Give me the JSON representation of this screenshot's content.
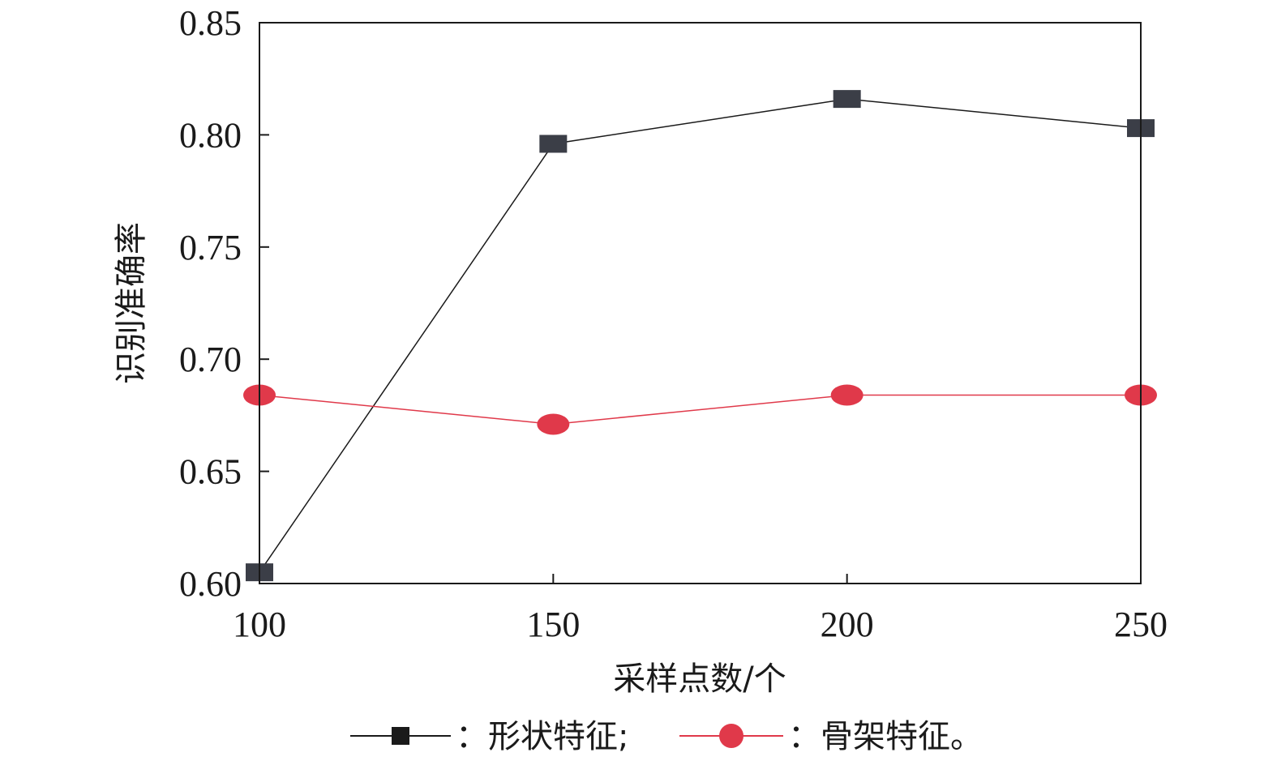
{
  "chart_data": {
    "type": "line",
    "xlabel": "采样点数/个",
    "ylabel": "识别准确率",
    "x": [
      100,
      150,
      200,
      250
    ],
    "xlim": [
      100,
      250
    ],
    "ylim": [
      0.6,
      0.85
    ],
    "x_ticks": [
      "100",
      "150",
      "200",
      "250"
    ],
    "y_ticks": [
      "0.60",
      "0.65",
      "0.70",
      "0.75",
      "0.80",
      "0.85"
    ],
    "grid": false,
    "legend_position": "bottom",
    "series": [
      {
        "name": "形状特征;",
        "values": [
          0.605,
          0.796,
          0.816,
          0.803
        ],
        "color": "#1a1a1a",
        "marker_color": "#3b3e47",
        "marker": "square"
      },
      {
        "name": "骨架特征。",
        "values": [
          0.684,
          0.671,
          0.684,
          0.684
        ],
        "color": "#e0394a",
        "marker_color": "#e0394a",
        "marker": "circle"
      }
    ],
    "legend_separator": "："
  }
}
